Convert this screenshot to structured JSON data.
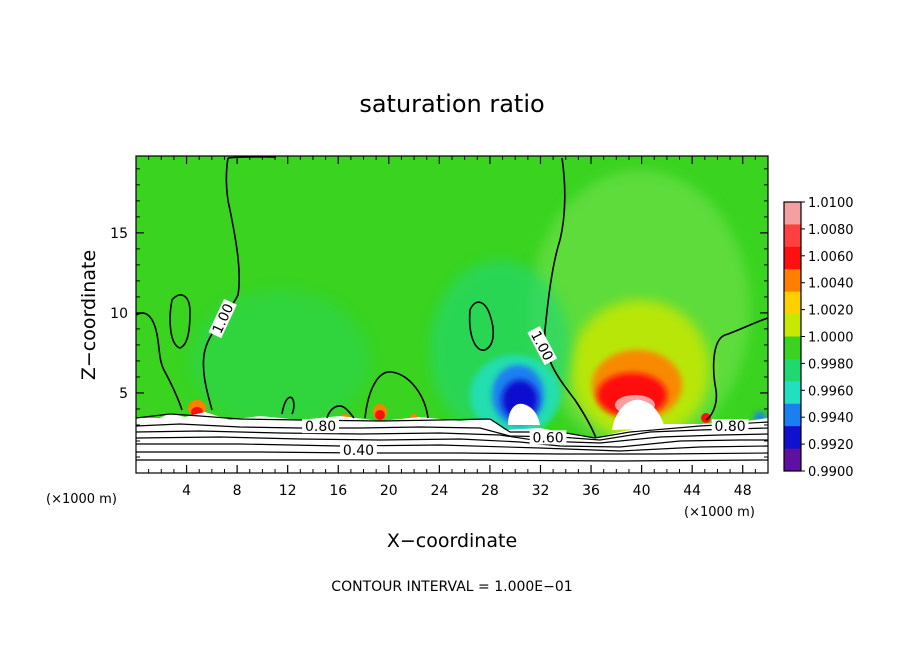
{
  "chart_data": {
    "type": "heatmap",
    "title": "saturation ratio",
    "xlabel": "X−coordinate",
    "ylabel": "Z−coordinate",
    "x_unit_left": "(×1000 m)",
    "x_unit_right": "(×1000 m)",
    "footer": "CONTOUR INTERVAL = 1.000E−01",
    "xlim": [
      0,
      50
    ],
    "ylim": [
      0,
      19.8
    ],
    "x_ticks": [
      4,
      8,
      12,
      16,
      20,
      24,
      28,
      32,
      36,
      40,
      44,
      48
    ],
    "y_ticks": [
      5,
      10,
      15
    ],
    "colorbar": {
      "levels": [
        "1.0100",
        "1.0080",
        "1.0060",
        "1.0040",
        "1.0020",
        "1.0000",
        "0.9980",
        "0.9960",
        "0.9940",
        "0.9920",
        "0.9900"
      ],
      "colors": [
        "#f4a0a0",
        "#ff4040",
        "#ff1010",
        "#ff8000",
        "#ffd000",
        "#c8e800",
        "#39d320",
        "#20d870",
        "#20e0c0",
        "#1a80f0",
        "#1010d0",
        "#6010a0"
      ]
    },
    "background_color": "#39d320",
    "contour_labels": [
      {
        "text": "1.00",
        "x": 7.0,
        "z": 9.6,
        "rotate": -65
      },
      {
        "text": "1.00",
        "x": 32.0,
        "z": 7.9,
        "rotate": 62
      },
      {
        "text": "0.80",
        "x": 14.6,
        "z": 2.8,
        "rotate": 0
      },
      {
        "text": "0.80",
        "x": 47.0,
        "z": 2.8,
        "rotate": 0
      },
      {
        "text": "0.60",
        "x": 32.6,
        "z": 2.1,
        "rotate": 0
      },
      {
        "text": "0.40",
        "x": 17.6,
        "z": 1.3,
        "rotate": 0
      }
    ]
  }
}
